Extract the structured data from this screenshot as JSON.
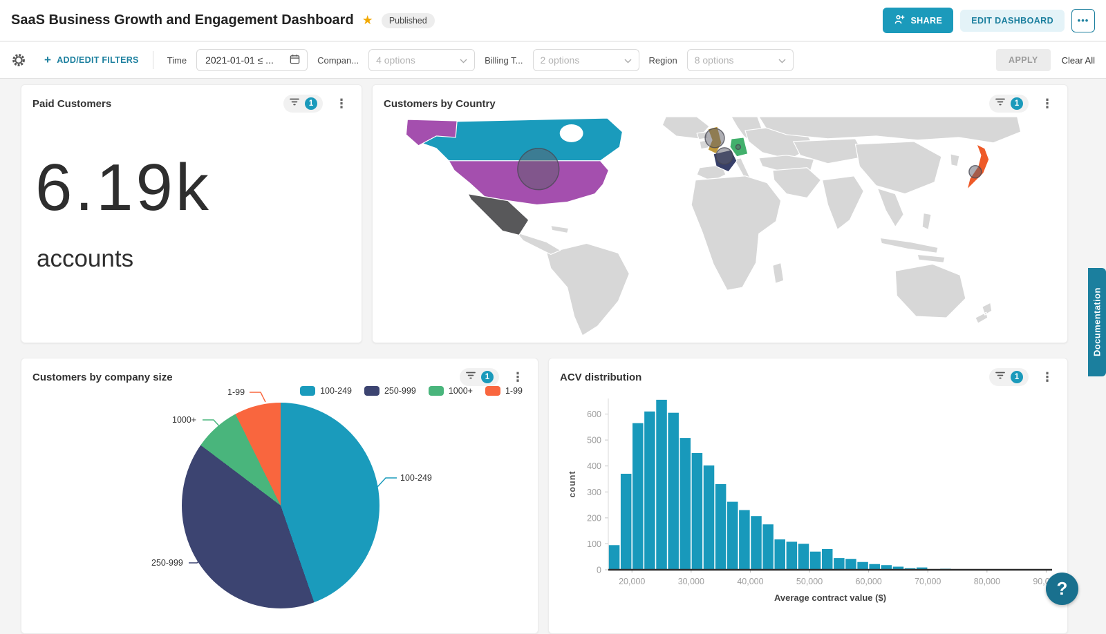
{
  "header": {
    "title": "SaaS Business Growth and Engagement Dashboard",
    "badge": "Published",
    "share_label": "SHARE",
    "edit_label": "EDIT DASHBOARD",
    "more_label": "•••",
    "accent_color": "#1b9abb"
  },
  "filter_bar": {
    "add_edit_label": "ADD/EDIT FILTERS",
    "apply_label": "APPLY",
    "clear_all_label": "Clear All",
    "items": [
      {
        "label": "Time",
        "value": "2021-01-01 ≤ ...",
        "type": "date"
      },
      {
        "label": "Compan...",
        "value": "4 options",
        "type": "select"
      },
      {
        "label": "Billing T...",
        "value": "2 options",
        "type": "select"
      },
      {
        "label": "Region",
        "value": "8 options",
        "type": "select"
      }
    ]
  },
  "paid_customers_card": {
    "title": "Paid Customers",
    "filter_count": "1",
    "value": "6.19k",
    "unit": "accounts"
  },
  "map_card": {
    "title": "Customers by Country",
    "filter_count": "1"
  },
  "pie_card": {
    "title": "Customers by company size",
    "filter_count": "1"
  },
  "histogram_card": {
    "title": "ACV distribution",
    "filter_count": "1"
  },
  "doc_tab_label": "Documentation",
  "help_label": "?",
  "icons": {
    "star": "★",
    "kebab": "⋮",
    "more": "•••",
    "help": "?"
  },
  "chart_data": [
    {
      "type": "pie",
      "title": "Customers by company size",
      "labels": [
        "100-249",
        "250-999",
        "1000+",
        "1-99"
      ],
      "values_pct": [
        44.7,
        40.6,
        7.4,
        7.3
      ],
      "colors": [
        "#1a9bbc",
        "#3c4471",
        "#49b57c",
        "#f9663e"
      ],
      "legend_position": "top-right",
      "callouts": true
    },
    {
      "type": "bar",
      "title": "ACV distribution",
      "xlabel": "Average contract value ($)",
      "ylabel": "count",
      "bar_color": "#1899bb",
      "bin_start": 16000,
      "bin_width": 2000,
      "values": [
        95,
        370,
        565,
        610,
        655,
        605,
        508,
        450,
        402,
        330,
        262,
        230,
        207,
        175,
        117,
        108,
        100,
        70,
        80,
        45,
        42,
        30,
        22,
        18,
        12,
        6,
        9,
        0,
        4,
        0
      ],
      "xlim": [
        16000,
        91000
      ],
      "ylim": [
        0,
        660
      ],
      "yticks": [
        0,
        100,
        200,
        300,
        400,
        500,
        600
      ],
      "xticks": [
        {
          "value": 20000,
          "label": "20,000"
        },
        {
          "value": 30000,
          "label": "30,000"
        },
        {
          "value": 40000,
          "label": "40,000"
        },
        {
          "value": 50000,
          "label": "50,000"
        },
        {
          "value": 60000,
          "label": "60,000"
        },
        {
          "value": 70000,
          "label": "70,000"
        },
        {
          "value": 80000,
          "label": "80,000"
        },
        {
          "value": 90000,
          "label": "90,000"
        }
      ],
      "grid": false
    },
    {
      "type": "map",
      "title": "Customers by Country",
      "default_land_color": "#d7d7d7",
      "bubble_color": "#5e5e6a",
      "highlighted": [
        {
          "country": "Canada",
          "color": "#1a9bbc",
          "bubble": null
        },
        {
          "country": "United States",
          "color": "#a44fae",
          "bubble": "large"
        },
        {
          "country": "Alaska (US)",
          "color": "#a44fae",
          "bubble": null
        },
        {
          "country": "Mexico",
          "color": "#58585a",
          "bubble": null
        },
        {
          "country": "United Kingdom",
          "color": "#c19a3b",
          "bubble": "medium"
        },
        {
          "country": "France",
          "color": "#373f69",
          "bubble": "medium"
        },
        {
          "country": "Germany",
          "color": "#42b06c",
          "bubble": "dot"
        },
        {
          "country": "Japan",
          "color": "#ee5a28",
          "bubble": "small"
        }
      ]
    }
  ]
}
